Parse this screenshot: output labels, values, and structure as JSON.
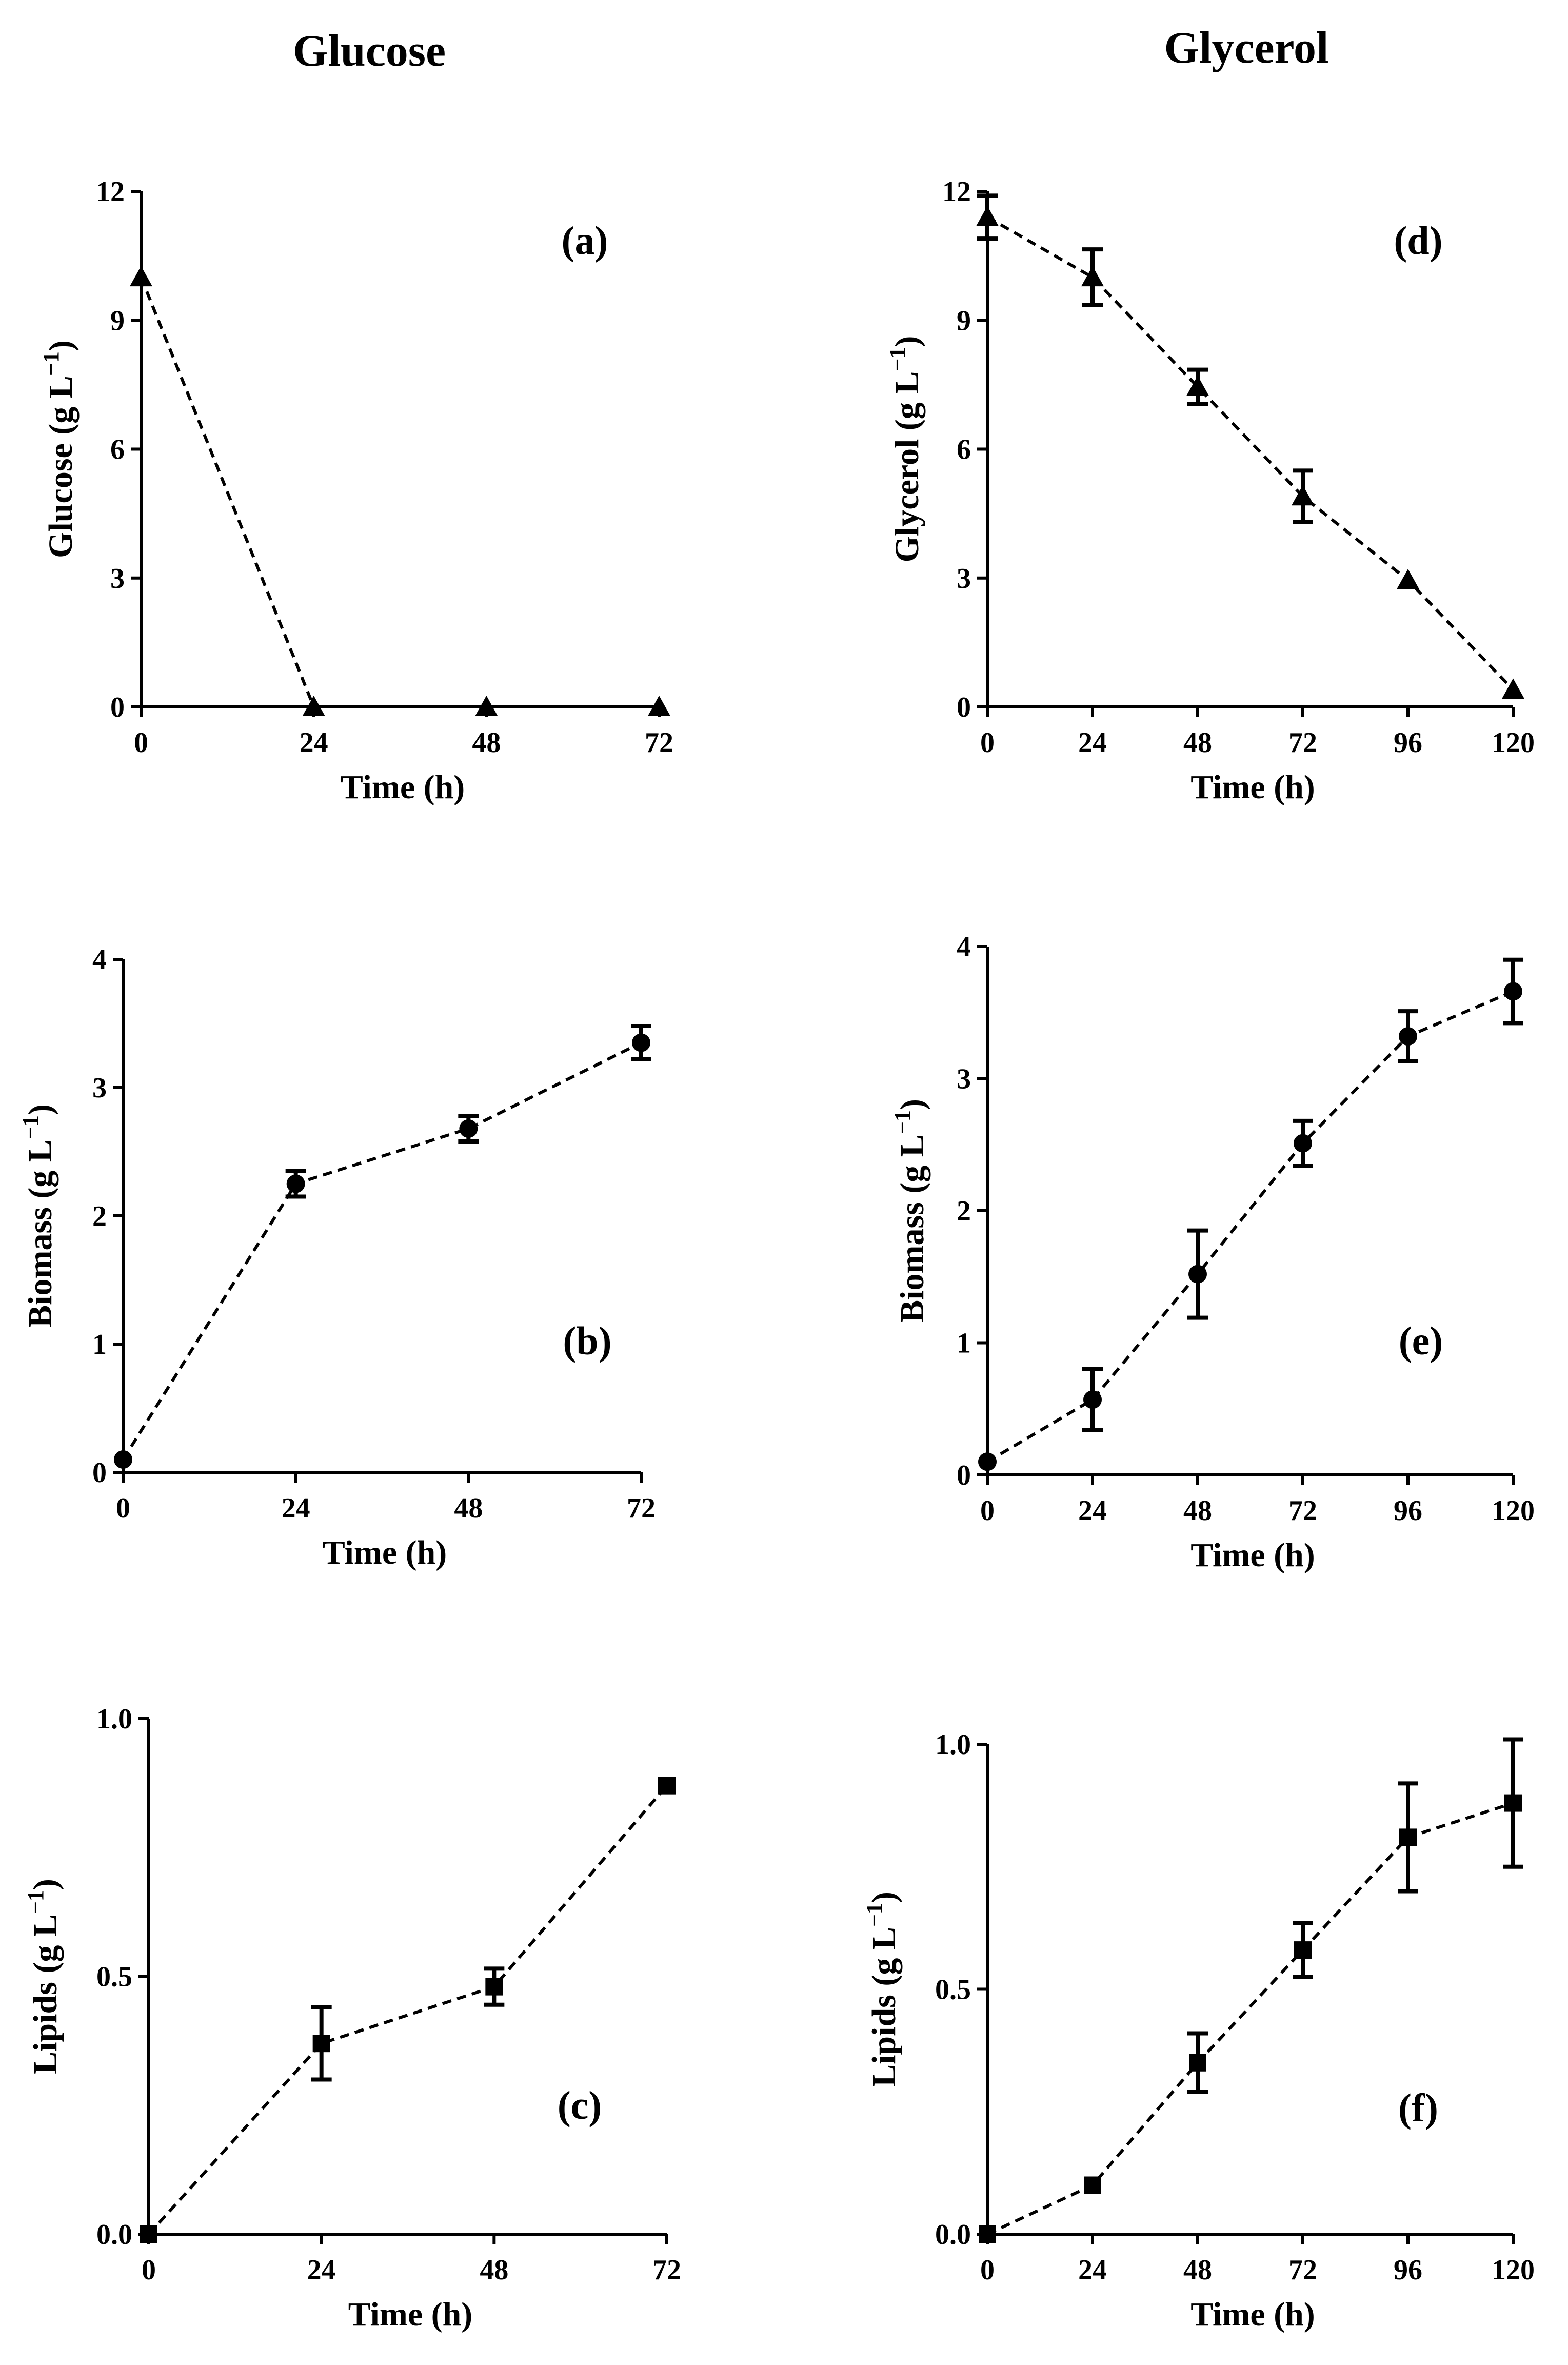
{
  "columns": [
    "Glucose",
    "Glycerol"
  ],
  "chart_data": [
    {
      "panel": "(a)",
      "type": "line",
      "marker": "triangle",
      "xlabel": "Time (h)",
      "ylabel_main": "Glucose",
      "ylabel_unit": "(g L",
      "ylabel_exp": "−1",
      "ylabel_close": ")",
      "xlim": [
        0,
        72
      ],
      "ylim": [
        0,
        12
      ],
      "xticks": [
        0,
        24,
        48,
        72
      ],
      "yticks": [
        0,
        3,
        6,
        9,
        12
      ],
      "ytick_labels": [
        "0",
        "3",
        "6",
        "9",
        "12"
      ],
      "x": [
        0,
        24,
        48,
        72
      ],
      "y": [
        10,
        0,
        0,
        0
      ],
      "err": [
        0,
        0,
        0,
        0
      ]
    },
    {
      "panel": "(b)",
      "type": "line",
      "marker": "circle",
      "xlabel": "Time (h)",
      "ylabel_main": "Biomass",
      "ylabel_unit": "(g L",
      "ylabel_exp": "−1",
      "ylabel_close": ")",
      "xlim": [
        0,
        72
      ],
      "ylim": [
        0,
        4
      ],
      "xticks": [
        0,
        24,
        48,
        72
      ],
      "yticks": [
        0,
        1,
        2,
        3,
        4
      ],
      "ytick_labels": [
        "0",
        "1",
        "2",
        "3",
        "4"
      ],
      "x": [
        0,
        24,
        48,
        72
      ],
      "y": [
        0.1,
        2.25,
        2.68,
        3.35
      ],
      "err": [
        0,
        0.1,
        0.1,
        0.13
      ]
    },
    {
      "panel": "(c)",
      "type": "line",
      "marker": "square",
      "xlabel": "Time (h)",
      "ylabel_main": "Lipids",
      "ylabel_unit": "(g L",
      "ylabel_exp": "−1",
      "ylabel_close": ")",
      "xlim": [
        0,
        72
      ],
      "ylim": [
        0,
        1
      ],
      "xticks": [
        0,
        24,
        48,
        72
      ],
      "yticks": [
        0,
        0.5,
        1
      ],
      "ytick_labels": [
        "0.0",
        "0.5",
        "1.0"
      ],
      "x": [
        0,
        24,
        48,
        72
      ],
      "y": [
        0,
        0.37,
        0.48,
        0.87
      ],
      "err": [
        0,
        0.07,
        0.035,
        0
      ]
    },
    {
      "panel": "(d)",
      "type": "line",
      "marker": "triangle",
      "xlabel": "Time (h)",
      "ylabel_main": "Glycerol",
      "ylabel_unit": "(g L",
      "ylabel_exp": "−1",
      "ylabel_close": ")",
      "xlim": [
        0,
        120
      ],
      "ylim": [
        0,
        12
      ],
      "xticks": [
        0,
        24,
        48,
        72,
        96,
        120
      ],
      "yticks": [
        0,
        3,
        6,
        9,
        12
      ],
      "ytick_labels": [
        "0",
        "3",
        "6",
        "9",
        "12"
      ],
      "x": [
        0,
        24,
        48,
        72,
        96,
        120
      ],
      "y": [
        11.4,
        10.0,
        7.45,
        4.9,
        2.95,
        0.4
      ],
      "err": [
        0.5,
        0.65,
        0.4,
        0.6,
        0,
        0
      ]
    },
    {
      "panel": "(e)",
      "type": "line",
      "marker": "circle",
      "xlabel": "Time (h)",
      "ylabel_main": "Biomass",
      "ylabel_unit": "(g L",
      "ylabel_exp": "−1",
      "ylabel_close": ")",
      "xlim": [
        0,
        120
      ],
      "ylim": [
        0,
        4
      ],
      "xticks": [
        0,
        24,
        48,
        72,
        96,
        120
      ],
      "yticks": [
        0,
        1,
        2,
        3,
        4
      ],
      "ytick_labels": [
        "0",
        "1",
        "2",
        "3",
        "4"
      ],
      "x": [
        0,
        24,
        48,
        72,
        96,
        120
      ],
      "y": [
        0.1,
        0.57,
        1.52,
        2.51,
        3.32,
        3.66
      ],
      "err": [
        0,
        0.23,
        0.33,
        0.17,
        0.19,
        0.24
      ]
    },
    {
      "panel": "(f)",
      "type": "line",
      "marker": "square",
      "xlabel": "Time (h)",
      "ylabel_main": "Lipids",
      "ylabel_unit": "(g L",
      "ylabel_exp": "−1",
      "ylabel_close": ")",
      "xlim": [
        0,
        120
      ],
      "ylim": [
        0,
        1
      ],
      "xticks": [
        0,
        24,
        48,
        72,
        96,
        120
      ],
      "yticks": [
        0,
        0.5,
        1
      ],
      "ytick_labels": [
        "0.0",
        "0.5",
        "1.0"
      ],
      "x": [
        0,
        24,
        48,
        72,
        96,
        120
      ],
      "y": [
        0,
        0.1,
        0.35,
        0.58,
        0.81,
        0.88
      ],
      "err": [
        0,
        0,
        0.06,
        0.055,
        0.11,
        0.13
      ]
    }
  ]
}
